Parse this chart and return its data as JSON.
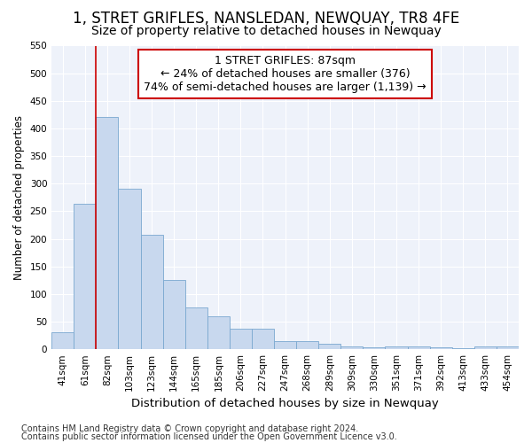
{
  "title": "1, STRET GRIFLES, NANSLEDAN, NEWQUAY, TR8 4FE",
  "subtitle": "Size of property relative to detached houses in Newquay",
  "xlabel": "Distribution of detached houses by size in Newquay",
  "ylabel": "Number of detached properties",
  "categories": [
    "41sqm",
    "61sqm",
    "82sqm",
    "103sqm",
    "123sqm",
    "144sqm",
    "165sqm",
    "185sqm",
    "206sqm",
    "227sqm",
    "247sqm",
    "268sqm",
    "289sqm",
    "309sqm",
    "330sqm",
    "351sqm",
    "371sqm",
    "392sqm",
    "413sqm",
    "433sqm",
    "454sqm"
  ],
  "values": [
    30,
    263,
    420,
    290,
    207,
    125,
    76,
    60,
    38,
    38,
    15,
    15,
    10,
    5,
    3,
    5,
    5,
    3,
    2,
    5,
    5
  ],
  "bar_color": "#c8d8ee",
  "bar_edge_color": "#7aa8d0",
  "annotation_text": "1 STRET GRIFLES: 87sqm\n← 24% of detached houses are smaller (376)\n74% of semi-detached houses are larger (1,139) →",
  "annotation_box_color": "#ffffff",
  "annotation_box_edge": "#cc0000",
  "vline_color": "#cc0000",
  "vline_x_index": 1.5,
  "ylim": [
    0,
    550
  ],
  "yticks": [
    0,
    50,
    100,
    150,
    200,
    250,
    300,
    350,
    400,
    450,
    500,
    550
  ],
  "background_color": "#eef2fa",
  "grid_color": "#ffffff",
  "footer1": "Contains HM Land Registry data © Crown copyright and database right 2024.",
  "footer2": "Contains public sector information licensed under the Open Government Licence v3.0.",
  "title_fontsize": 12,
  "subtitle_fontsize": 10,
  "xlabel_fontsize": 9.5,
  "ylabel_fontsize": 8.5,
  "tick_fontsize": 7.5,
  "annotation_fontsize": 9,
  "footer_fontsize": 7
}
